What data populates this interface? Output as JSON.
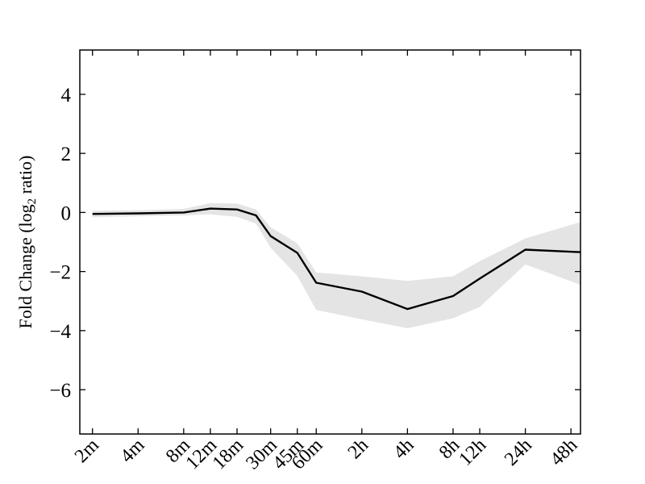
{
  "figure": {
    "ylabel_pre": "Fold Change (log",
    "ylabel_sub": "2",
    "ylabel_post": " ratio)"
  },
  "chart_data": {
    "type": "line",
    "title": "",
    "xlabel": "",
    "ylabel": "Fold Change (log2 ratio)",
    "x_scale": "log2-time-minutes",
    "grid": false,
    "legend": null,
    "line_color": "#000000",
    "band_color": "#e4e4e4",
    "axis_color": "#000000",
    "ylim": [
      -7.5,
      5.5
    ],
    "xlim_minutes": [
      1.65,
      3330
    ],
    "y_ticks": [
      4,
      2,
      0,
      -2,
      -4,
      -6
    ],
    "x_tick_labels": [
      "2m",
      "4m",
      "8m",
      "12m",
      "18m",
      "30m",
      "45m",
      "60m",
      "2h",
      "4h",
      "8h",
      "12h",
      "24h",
      "48h"
    ],
    "points": [
      {
        "label": "2m",
        "t_min": 2,
        "value": -0.05,
        "band_hi": 0.06,
        "band_lo": -0.16
      },
      {
        "label": "4m",
        "t_min": 4,
        "value": -0.03,
        "band_hi": 0.07,
        "band_lo": -0.13
      },
      {
        "label": "8m",
        "t_min": 8,
        "value": 0.0,
        "band_hi": 0.12,
        "band_lo": -0.1
      },
      {
        "label": "12m",
        "t_min": 12,
        "value": 0.13,
        "band_hi": 0.32,
        "band_lo": -0.06
      },
      {
        "label": "18m",
        "t_min": 18,
        "value": 0.1,
        "band_hi": 0.3,
        "band_lo": -0.15
      },
      {
        "label": "",
        "t_min": 24,
        "value": -0.1,
        "band_hi": 0.1,
        "band_lo": -0.38
      },
      {
        "label": "30m",
        "t_min": 30,
        "value": -0.8,
        "band_hi": -0.5,
        "band_lo": -1.2
      },
      {
        "label": "45m",
        "t_min": 45,
        "value": -1.37,
        "band_hi": -1.05,
        "band_lo": -2.15
      },
      {
        "label": "60m",
        "t_min": 60,
        "value": -2.38,
        "band_hi": -2.03,
        "band_lo": -3.3
      },
      {
        "label": "2h",
        "t_min": 120,
        "value": -2.68,
        "band_hi": -2.16,
        "band_lo": -3.62
      },
      {
        "label": "4h",
        "t_min": 240,
        "value": -3.27,
        "band_hi": -2.32,
        "band_lo": -3.92
      },
      {
        "label": "8h",
        "t_min": 480,
        "value": -2.83,
        "band_hi": -2.16,
        "band_lo": -3.58
      },
      {
        "label": "12h",
        "t_min": 720,
        "value": -2.24,
        "band_hi": -1.65,
        "band_lo": -3.2
      },
      {
        "label": "24h",
        "t_min": 1440,
        "value": -1.26,
        "band_hi": -0.88,
        "band_lo": -1.76
      },
      {
        "label": "48h",
        "t_min": 2880,
        "value": -1.33,
        "band_hi": -0.42,
        "band_lo": -2.33
      }
    ],
    "line_clipped_at_right_edge": true
  }
}
